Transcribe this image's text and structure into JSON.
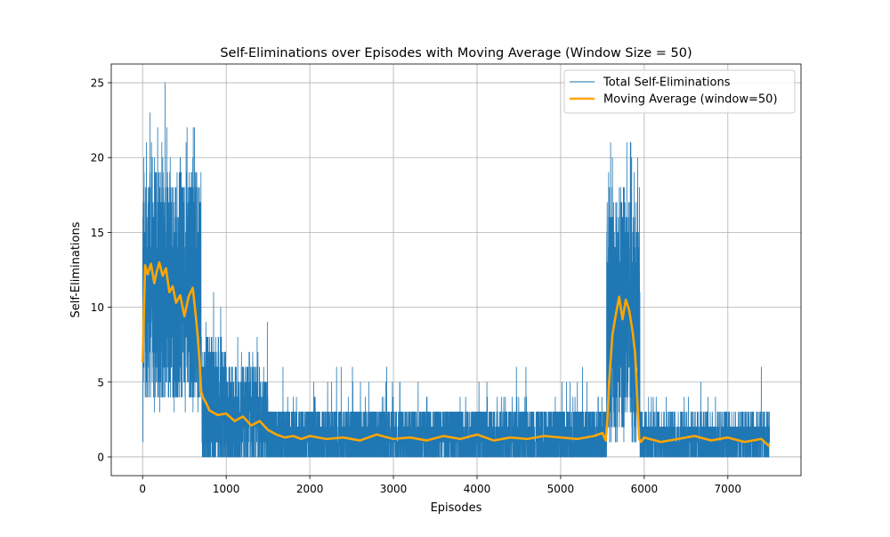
{
  "chart_data": {
    "type": "line",
    "title": "Self-Eliminations over Episodes with Moving Average (Window Size = 50)",
    "xlabel": "Episodes",
    "ylabel": "Self-Eliminations",
    "xlim": [
      -375,
      7875
    ],
    "ylim": [
      -1.25,
      26.25
    ],
    "x_ticks": [
      0,
      1000,
      2000,
      3000,
      4000,
      5000,
      6000,
      7000
    ],
    "y_ticks": [
      0,
      5,
      10,
      15,
      20,
      25
    ],
    "grid": true,
    "legend_position": "top-right",
    "episodes": [
      0,
      7500
    ],
    "series": [
      {
        "name": "Total Self-Eliminations",
        "color": "#1f77b4",
        "kind": "raw",
        "segments": [
          {
            "x": [
              0,
              700
            ],
            "center": 11.5,
            "low": 5,
            "high": 19
          },
          {
            "x": [
              700,
              1000
            ],
            "center": 3.3,
            "low": 0,
            "high": 8
          },
          {
            "x": [
              1000,
              1500
            ],
            "center": 2.4,
            "low": 0,
            "high": 6
          },
          {
            "x": [
              1500,
              5550
            ],
            "center": 1.2,
            "low": 0,
            "high": 4
          },
          {
            "x": [
              5550,
              5950
            ],
            "center": 9.5,
            "low": 3,
            "high": 18
          },
          {
            "x": [
              5950,
              7500
            ],
            "center": 1.1,
            "low": 0,
            "high": 3
          }
        ],
        "peaks": [
          {
            "x": 5,
            "y": 1
          },
          {
            "x": 15,
            "y": 20
          },
          {
            "x": 45,
            "y": 21
          },
          {
            "x": 60,
            "y": 4
          },
          {
            "x": 90,
            "y": 23
          },
          {
            "x": 140,
            "y": 3
          },
          {
            "x": 180,
            "y": 22
          },
          {
            "x": 205,
            "y": 3
          },
          {
            "x": 230,
            "y": 21
          },
          {
            "x": 270,
            "y": 25
          },
          {
            "x": 330,
            "y": 20
          },
          {
            "x": 450,
            "y": 20
          },
          {
            "x": 520,
            "y": 21
          },
          {
            "x": 600,
            "y": 20
          },
          {
            "x": 1370,
            "y": 8
          },
          {
            "x": 2320,
            "y": 6
          },
          {
            "x": 5620,
            "y": 20
          },
          {
            "x": 5660,
            "y": 17
          },
          {
            "x": 5850,
            "y": 20
          },
          {
            "x": 5880,
            "y": 19
          },
          {
            "x": 7400,
            "y": 6
          }
        ]
      },
      {
        "name": "Moving Average (window=50)",
        "color": "#ffa500",
        "kind": "smooth",
        "x": [
          0,
          30,
          60,
          100,
          140,
          170,
          200,
          240,
          280,
          320,
          360,
          400,
          450,
          500,
          550,
          600,
          640,
          660,
          680,
          700,
          720,
          760,
          800,
          900,
          1000,
          1100,
          1200,
          1300,
          1400,
          1500,
          1600,
          1700,
          1800,
          1900,
          2000,
          2200,
          2400,
          2600,
          2800,
          3000,
          3200,
          3400,
          3600,
          3800,
          4000,
          4200,
          4400,
          4600,
          4800,
          5000,
          5200,
          5400,
          5500,
          5540,
          5560,
          5580,
          5620,
          5660,
          5700,
          5740,
          5780,
          5820,
          5860,
          5890,
          5920,
          5940,
          5960,
          6000,
          6200,
          6400,
          6600,
          6800,
          7000,
          7200,
          7400,
          7500
        ],
        "y": [
          6.3,
          12.8,
          12.2,
          12.9,
          11.6,
          12.4,
          13.0,
          12.1,
          12.6,
          11.0,
          11.4,
          10.3,
          10.8,
          9.4,
          10.7,
          11.3,
          9.2,
          8.0,
          6.5,
          4.4,
          4.0,
          3.6,
          3.1,
          2.8,
          2.9,
          2.4,
          2.7,
          2.1,
          2.4,
          1.8,
          1.5,
          1.3,
          1.4,
          1.2,
          1.4,
          1.2,
          1.3,
          1.1,
          1.5,
          1.2,
          1.3,
          1.1,
          1.4,
          1.2,
          1.5,
          1.1,
          1.3,
          1.2,
          1.4,
          1.3,
          1.2,
          1.4,
          1.6,
          1.1,
          2.5,
          5.0,
          8.2,
          9.5,
          10.7,
          9.2,
          10.5,
          9.8,
          8.4,
          7.0,
          3.5,
          1.2,
          1.0,
          1.3,
          1.0,
          1.2,
          1.4,
          1.1,
          1.3,
          1.0,
          1.2,
          0.7
        ]
      }
    ]
  }
}
